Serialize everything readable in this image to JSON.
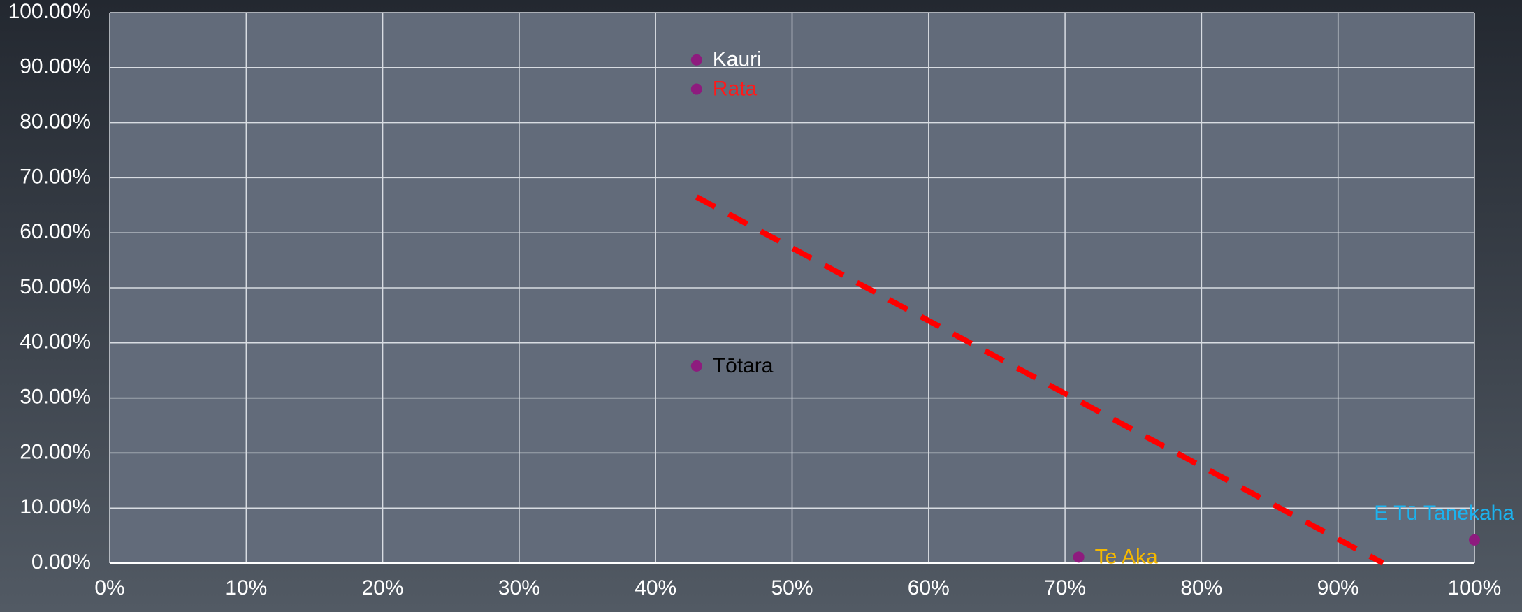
{
  "chart_data": {
    "type": "scatter",
    "point_color": "#8e1b7e",
    "points": [
      {
        "name": "Kauri",
        "x": 43,
        "y": 91.4,
        "label_color": "#ffffff",
        "label_position": "right"
      },
      {
        "name": "Rata",
        "x": 43,
        "y": 86.1,
        "label_color": "#ff1a1a",
        "label_position": "right"
      },
      {
        "name": "Tōtara",
        "x": 43,
        "y": 35.8,
        "label_color": "#000000",
        "label_position": "right"
      },
      {
        "name": "Te Aka",
        "x": 71,
        "y": 1.1,
        "label_color": "#f5b800",
        "label_position": "right"
      },
      {
        "name": "E Tū Tanekaha",
        "x": 100,
        "y": 4.2,
        "label_color": "#1cb2ee",
        "label_position": "above"
      }
    ],
    "trendline": {
      "x": [
        43,
        93.3
      ],
      "y": [
        66.5,
        0
      ],
      "color": "#ff0000"
    },
    "xlim": [
      0,
      100
    ],
    "ylim": [
      0,
      100
    ],
    "xticks": [
      {
        "value": 0,
        "label": "0%"
      },
      {
        "value": 10,
        "label": "10%"
      },
      {
        "value": 20,
        "label": "20%"
      },
      {
        "value": 30,
        "label": "30%"
      },
      {
        "value": 40,
        "label": "40%"
      },
      {
        "value": 50,
        "label": "50%"
      },
      {
        "value": 60,
        "label": "60%"
      },
      {
        "value": 70,
        "label": "70%"
      },
      {
        "value": 80,
        "label": "80%"
      },
      {
        "value": 90,
        "label": "90%"
      },
      {
        "value": 100,
        "label": "100%"
      }
    ],
    "yticks": [
      {
        "value": 0,
        "label": "0.00%"
      },
      {
        "value": 10,
        "label": "10.00%"
      },
      {
        "value": 20,
        "label": "20.00%"
      },
      {
        "value": 30,
        "label": "30.00%"
      },
      {
        "value": 40,
        "label": "40.00%"
      },
      {
        "value": 50,
        "label": "50.00%"
      },
      {
        "value": 60,
        "label": "60.00%"
      },
      {
        "value": 70,
        "label": "70.00%"
      },
      {
        "value": 80,
        "label": "80.00%"
      },
      {
        "value": 90,
        "label": "90.00%"
      },
      {
        "value": 100,
        "label": "100.00%"
      }
    ],
    "grid": true
  }
}
